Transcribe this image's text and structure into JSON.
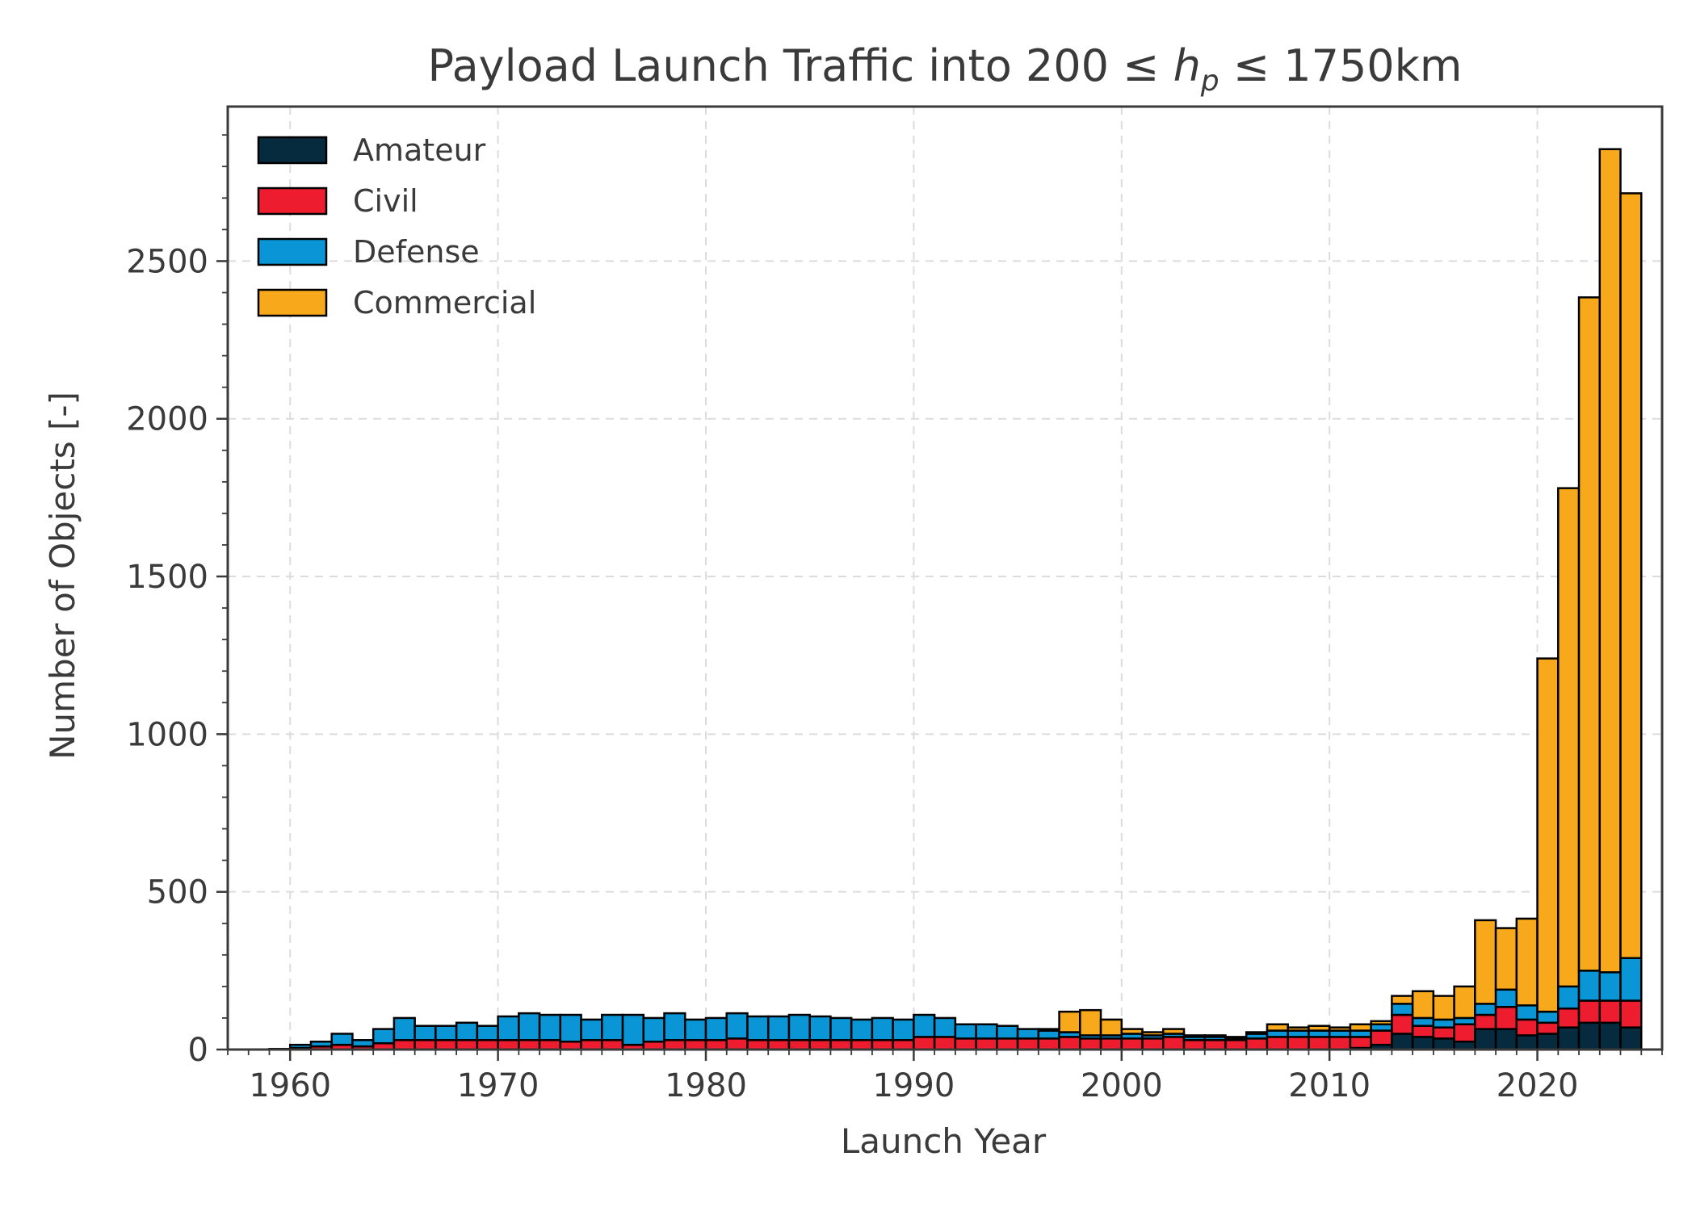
{
  "chart_data": {
    "type": "bar",
    "stacked": true,
    "title": "Payload Launch Traffic into 200 ≤ h_p ≤ 1750km",
    "title_parts": {
      "prefix": "Payload Launch Traffic into 200 ≤",
      "var": "h",
      "sub": "p",
      "suffix": "≤ 1750km"
    },
    "xlabel": "Launch Year",
    "ylabel": "Number of Objects [-]",
    "xlim": [
      1957,
      2025
    ],
    "ylim": [
      0,
      2990
    ],
    "xticks": [
      1960,
      1970,
      1980,
      1990,
      2000,
      2010,
      2020
    ],
    "yticks": [
      0,
      500,
      1000,
      1500,
      2000,
      2500
    ],
    "grid": true,
    "legend_position": "top-left",
    "categories": [
      1957,
      1958,
      1959,
      1960,
      1961,
      1962,
      1963,
      1964,
      1965,
      1966,
      1967,
      1968,
      1969,
      1970,
      1971,
      1972,
      1973,
      1974,
      1975,
      1976,
      1977,
      1978,
      1979,
      1980,
      1981,
      1982,
      1983,
      1984,
      1985,
      1986,
      1987,
      1988,
      1989,
      1990,
      1991,
      1992,
      1993,
      1994,
      1995,
      1996,
      1997,
      1998,
      1999,
      2000,
      2001,
      2002,
      2003,
      2004,
      2005,
      2006,
      2007,
      2008,
      2009,
      2010,
      2011,
      2012,
      2013,
      2014,
      2015,
      2016,
      2017,
      2018,
      2019,
      2020,
      2021,
      2022,
      2023,
      2024
    ],
    "series": [
      {
        "name": "Amateur",
        "color": "#062a3e",
        "values": [
          0,
          0,
          0,
          0,
          0,
          0,
          0,
          0,
          0,
          0,
          0,
          0,
          0,
          0,
          0,
          0,
          0,
          0,
          0,
          0,
          0,
          0,
          0,
          0,
          0,
          0,
          0,
          0,
          0,
          0,
          0,
          0,
          0,
          0,
          0,
          0,
          0,
          0,
          0,
          0,
          0,
          0,
          0,
          0,
          0,
          0,
          0,
          0,
          0,
          0,
          0,
          0,
          0,
          0,
          5,
          15,
          50,
          40,
          35,
          25,
          65,
          65,
          45,
          50,
          70,
          85,
          85,
          70
        ]
      },
      {
        "name": "Civil",
        "color": "#ed1c2e",
        "values": [
          0,
          0,
          2,
          5,
          10,
          15,
          10,
          20,
          30,
          30,
          30,
          30,
          30,
          30,
          30,
          30,
          25,
          30,
          30,
          15,
          25,
          30,
          30,
          30,
          35,
          30,
          30,
          30,
          30,
          30,
          30,
          30,
          30,
          40,
          40,
          35,
          35,
          35,
          35,
          35,
          40,
          35,
          35,
          35,
          35,
          40,
          30,
          30,
          30,
          35,
          40,
          40,
          40,
          40,
          35,
          45,
          60,
          35,
          35,
          55,
          45,
          70,
          50,
          35,
          60,
          70,
          70,
          85
        ]
      },
      {
        "name": "Defense",
        "color": "#0a96d6",
        "values": [
          0,
          0,
          0,
          10,
          15,
          35,
          20,
          45,
          70,
          45,
          45,
          55,
          45,
          75,
          85,
          80,
          85,
          65,
          80,
          95,
          75,
          85,
          65,
          70,
          80,
          75,
          75,
          80,
          75,
          70,
          65,
          70,
          65,
          70,
          60,
          45,
          45,
          40,
          30,
          25,
          15,
          10,
          10,
          15,
          10,
          10,
          10,
          10,
          5,
          15,
          20,
          20,
          20,
          20,
          20,
          20,
          35,
          25,
          25,
          20,
          35,
          55,
          45,
          35,
          70,
          95,
          90,
          135
        ]
      },
      {
        "name": "Commercial",
        "color": "#f8a91b",
        "values": [
          0,
          0,
          0,
          0,
          0,
          0,
          0,
          0,
          0,
          0,
          0,
          0,
          0,
          0,
          0,
          0,
          0,
          0,
          0,
          0,
          0,
          0,
          0,
          0,
          0,
          0,
          0,
          0,
          0,
          0,
          0,
          0,
          0,
          0,
          0,
          0,
          0,
          0,
          0,
          5,
          65,
          80,
          50,
          15,
          10,
          15,
          5,
          5,
          5,
          5,
          20,
          10,
          15,
          10,
          20,
          10,
          25,
          85,
          75,
          100,
          265,
          195,
          275,
          1120,
          1580,
          2135,
          2610,
          2425
        ]
      }
    ]
  }
}
